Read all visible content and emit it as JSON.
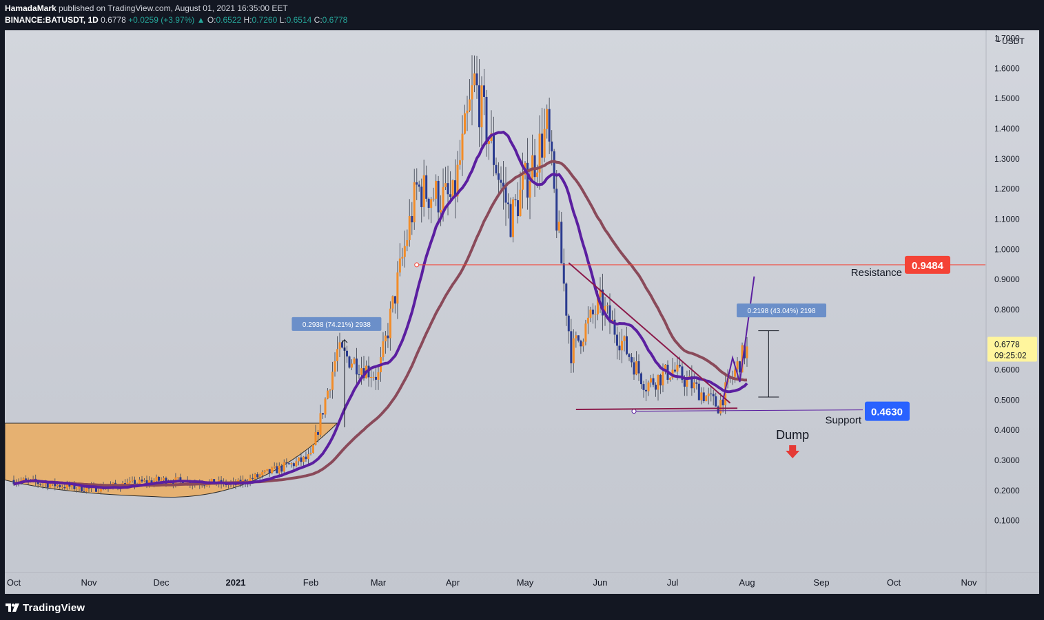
{
  "header": {
    "author": "HamadaMark",
    "published_text": "published on TradingView.com, August 01, 2021 16:35:00 EET",
    "symbol": "BINANCE:BATUSDT, 1D",
    "last": "0.6778",
    "change": "+0.0259 (+3.97%)",
    "change_arrow": "▲",
    "o_label": "O:",
    "o_value": "0.6522",
    "h_label": "H:",
    "h_value": "0.7260",
    "l_label": "L:",
    "l_value": "0.6514",
    "c_label": "C:",
    "c_value": "0.6778"
  },
  "footer": {
    "logo_text": "TradingView"
  },
  "colors": {
    "up": "#f28c28",
    "down": "#2a3b8f",
    "ma_fast": "#5b1fa0",
    "ma_slow": "#8a4a5a",
    "resistance": "#f44336",
    "support_badge": "#2962ff",
    "trendline": "#8b1a4a",
    "measure_box": "#6b8fc9",
    "cup_fill": "#f0a850"
  },
  "chart_data": {
    "type": "candlestick",
    "symbol": "BINANCE:BATUSDT",
    "interval": "1D",
    "currency": "USDT",
    "yaxis_top_label": "1",
    "y_ticks": [
      "1.7000",
      "1.6000",
      "1.5000",
      "1.4000",
      "1.3000",
      "1.2000",
      "1.1000",
      "1.0000",
      "0.9000",
      "0.8000",
      "0.7000",
      "0.6000",
      "0.5000",
      "0.4000",
      "0.3000",
      "0.2000",
      "0.1000"
    ],
    "x_ticks": [
      "Oct",
      "Nov",
      "Dec",
      "2021",
      "Feb",
      "Mar",
      "Apr",
      "May",
      "Jun",
      "Jul",
      "Aug",
      "Sep",
      "Oct",
      "Nov"
    ],
    "ylim": [
      0.0,
      1.75
    ],
    "grid": false,
    "current_price": {
      "value": "0.6778",
      "countdown": "09:25:02"
    },
    "resistance": {
      "label": "Resistance",
      "value": "0.9484"
    },
    "support": {
      "label": "Support",
      "value": "0.4630"
    },
    "annotations": {
      "measure_1": "0.2938 (74.21%) 2938",
      "measure_2": "0.2198 (43.04%) 2198",
      "dump_label": "Dump"
    },
    "candles_ohlc_anchor_closes": [
      [
        "2020-10-01",
        0.235
      ],
      [
        "2020-11-01",
        0.205
      ],
      [
        "2020-12-01",
        0.235
      ],
      [
        "2021-01-01",
        0.22
      ],
      [
        "2021-02-01",
        0.31
      ],
      [
        "2021-02-12",
        0.66
      ],
      [
        "2021-03-01",
        0.58
      ],
      [
        "2021-03-17",
        1.2
      ],
      [
        "2021-04-01",
        1.16
      ],
      [
        "2021-04-10",
        1.55
      ],
      [
        "2021-04-25",
        1.1
      ],
      [
        "2021-05-10",
        1.4
      ],
      [
        "2021-05-20",
        0.66
      ],
      [
        "2021-06-01",
        0.82
      ],
      [
        "2021-06-20",
        0.55
      ],
      [
        "2021-07-01",
        0.6
      ],
      [
        "2021-07-20",
        0.48
      ],
      [
        "2021-08-01",
        0.6778
      ]
    ]
  }
}
